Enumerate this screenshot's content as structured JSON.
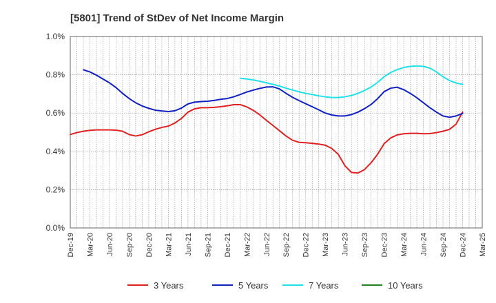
{
  "chart_data": {
    "type": "line",
    "title": "[5801]  Trend of StDev of Net Income Margin",
    "xlabel": "",
    "ylabel": "",
    "x_tick_labels": [
      "Dec-19",
      "Mar-20",
      "Jun-20",
      "Sep-20",
      "Dec-20",
      "Mar-21",
      "Jun-21",
      "Sep-21",
      "Dec-21",
      "Mar-22",
      "Jun-22",
      "Sep-22",
      "Dec-22",
      "Mar-23",
      "Jun-23",
      "Sep-23",
      "Dec-23",
      "Mar-24",
      "Jun-24",
      "Sep-24",
      "Dec-24",
      "Mar-25"
    ],
    "y_tick_labels": [
      "0.0%",
      "0.2%",
      "0.4%",
      "0.6%",
      "0.8%",
      "1.0%"
    ],
    "ylim": [
      0,
      1.0
    ],
    "grid": true,
    "legend_position": "bottom",
    "series": [
      {
        "name": "3 Years",
        "color": "#e02020",
        "points": [
          [
            "Dec-19",
            0.488
          ],
          [
            "Jan-20",
            0.498
          ],
          [
            "Feb-20",
            0.505
          ],
          [
            "Mar-20",
            0.51
          ],
          [
            "Apr-20",
            0.512
          ],
          [
            "May-20",
            0.512
          ],
          [
            "Jun-20",
            0.512
          ],
          [
            "Jul-20",
            0.511
          ],
          [
            "Aug-20",
            0.505
          ],
          [
            "Sep-20",
            0.488
          ],
          [
            "Oct-20",
            0.48
          ],
          [
            "Nov-20",
            0.487
          ],
          [
            "Dec-20",
            0.502
          ],
          [
            "Jan-21",
            0.515
          ],
          [
            "Feb-21",
            0.525
          ],
          [
            "Mar-21",
            0.532
          ],
          [
            "Apr-21",
            0.548
          ],
          [
            "May-21",
            0.572
          ],
          [
            "Jun-21",
            0.605
          ],
          [
            "Jul-21",
            0.622
          ],
          [
            "Aug-21",
            0.628
          ],
          [
            "Sep-21",
            0.628
          ],
          [
            "Oct-21",
            0.63
          ],
          [
            "Nov-21",
            0.633
          ],
          [
            "Dec-21",
            0.638
          ],
          [
            "Jan-22",
            0.644
          ],
          [
            "Feb-22",
            0.644
          ],
          [
            "Mar-22",
            0.632
          ],
          [
            "Apr-22",
            0.614
          ],
          [
            "May-22",
            0.59
          ],
          [
            "Jun-22",
            0.562
          ],
          [
            "Jul-22",
            0.535
          ],
          [
            "Aug-22",
            0.508
          ],
          [
            "Sep-22",
            0.48
          ],
          [
            "Oct-22",
            0.458
          ],
          [
            "Nov-22",
            0.447
          ],
          [
            "Dec-22",
            0.445
          ],
          [
            "Jan-23",
            0.442
          ],
          [
            "Feb-23",
            0.438
          ],
          [
            "Mar-23",
            0.432
          ],
          [
            "Apr-23",
            0.415
          ],
          [
            "May-23",
            0.384
          ],
          [
            "Jun-23",
            0.325
          ],
          [
            "Jul-23",
            0.29
          ],
          [
            "Aug-23",
            0.287
          ],
          [
            "Sep-23",
            0.305
          ],
          [
            "Oct-23",
            0.34
          ],
          [
            "Nov-23",
            0.385
          ],
          [
            "Dec-23",
            0.44
          ],
          [
            "Jan-24",
            0.47
          ],
          [
            "Feb-24",
            0.486
          ],
          [
            "Mar-24",
            0.492
          ],
          [
            "Apr-24",
            0.494
          ],
          [
            "May-24",
            0.494
          ],
          [
            "Jun-24",
            0.492
          ],
          [
            "Jul-24",
            0.493
          ],
          [
            "Aug-24",
            0.498
          ],
          [
            "Sep-24",
            0.505
          ],
          [
            "Oct-24",
            0.515
          ],
          [
            "Nov-24",
            0.542
          ],
          [
            "Dec-24",
            0.605
          ]
        ]
      },
      {
        "name": "5 Years",
        "color": "#1020c0",
        "points": [
          [
            "Feb-20",
            0.826
          ],
          [
            "Mar-20",
            0.815
          ],
          [
            "Apr-20",
            0.798
          ],
          [
            "May-20",
            0.778
          ],
          [
            "Jun-20",
            0.758
          ],
          [
            "Jul-20",
            0.733
          ],
          [
            "Aug-20",
            0.703
          ],
          [
            "Sep-20",
            0.676
          ],
          [
            "Oct-20",
            0.654
          ],
          [
            "Nov-20",
            0.637
          ],
          [
            "Dec-20",
            0.625
          ],
          [
            "Jan-21",
            0.615
          ],
          [
            "Feb-21",
            0.611
          ],
          [
            "Mar-21",
            0.608
          ],
          [
            "Apr-21",
            0.612
          ],
          [
            "May-21",
            0.626
          ],
          [
            "Jun-21",
            0.648
          ],
          [
            "Jul-21",
            0.657
          ],
          [
            "Aug-21",
            0.66
          ],
          [
            "Sep-21",
            0.662
          ],
          [
            "Oct-21",
            0.666
          ],
          [
            "Nov-21",
            0.672
          ],
          [
            "Dec-21",
            0.676
          ],
          [
            "Jan-22",
            0.685
          ],
          [
            "Feb-22",
            0.697
          ],
          [
            "Mar-22",
            0.71
          ],
          [
            "Apr-22",
            0.72
          ],
          [
            "May-22",
            0.729
          ],
          [
            "Jun-22",
            0.736
          ],
          [
            "Jul-22",
            0.737
          ],
          [
            "Aug-22",
            0.726
          ],
          [
            "Sep-22",
            0.703
          ],
          [
            "Oct-22",
            0.682
          ],
          [
            "Nov-22",
            0.665
          ],
          [
            "Dec-22",
            0.649
          ],
          [
            "Jan-23",
            0.633
          ],
          [
            "Feb-23",
            0.617
          ],
          [
            "Mar-23",
            0.6
          ],
          [
            "Apr-23",
            0.59
          ],
          [
            "May-23",
            0.585
          ],
          [
            "Jun-23",
            0.585
          ],
          [
            "Jul-23",
            0.592
          ],
          [
            "Aug-23",
            0.605
          ],
          [
            "Sep-23",
            0.623
          ],
          [
            "Oct-23",
            0.645
          ],
          [
            "Nov-23",
            0.675
          ],
          [
            "Dec-23",
            0.712
          ],
          [
            "Jan-24",
            0.73
          ],
          [
            "Feb-24",
            0.735
          ],
          [
            "Mar-24",
            0.722
          ],
          [
            "Apr-24",
            0.703
          ],
          [
            "May-24",
            0.68
          ],
          [
            "Jun-24",
            0.654
          ],
          [
            "Jul-24",
            0.628
          ],
          [
            "Aug-24",
            0.605
          ],
          [
            "Sep-24",
            0.585
          ],
          [
            "Oct-24",
            0.578
          ],
          [
            "Nov-24",
            0.585
          ],
          [
            "Dec-24",
            0.598
          ]
        ]
      },
      {
        "name": "7 Years",
        "color": "#20e0e8",
        "points": [
          [
            "Feb-22",
            0.782
          ],
          [
            "Mar-22",
            0.778
          ],
          [
            "Apr-22",
            0.773
          ],
          [
            "May-22",
            0.766
          ],
          [
            "Jun-22",
            0.758
          ],
          [
            "Jul-22",
            0.75
          ],
          [
            "Aug-22",
            0.741
          ],
          [
            "Sep-22",
            0.73
          ],
          [
            "Oct-22",
            0.72
          ],
          [
            "Nov-22",
            0.711
          ],
          [
            "Dec-22",
            0.703
          ],
          [
            "Jan-23",
            0.697
          ],
          [
            "Feb-23",
            0.69
          ],
          [
            "Mar-23",
            0.685
          ],
          [
            "Apr-23",
            0.681
          ],
          [
            "May-23",
            0.681
          ],
          [
            "Jun-23",
            0.685
          ],
          [
            "Jul-23",
            0.692
          ],
          [
            "Aug-23",
            0.703
          ],
          [
            "Sep-23",
            0.718
          ],
          [
            "Oct-23",
            0.736
          ],
          [
            "Nov-23",
            0.76
          ],
          [
            "Dec-23",
            0.79
          ],
          [
            "Jan-24",
            0.812
          ],
          [
            "Feb-24",
            0.827
          ],
          [
            "Mar-24",
            0.838
          ],
          [
            "Apr-24",
            0.844
          ],
          [
            "May-24",
            0.846
          ],
          [
            "Jun-24",
            0.844
          ],
          [
            "Jul-24",
            0.835
          ],
          [
            "Aug-24",
            0.815
          ],
          [
            "Sep-24",
            0.79
          ],
          [
            "Oct-24",
            0.77
          ],
          [
            "Nov-24",
            0.757
          ],
          [
            "Dec-24",
            0.75
          ]
        ]
      },
      {
        "name": "10 Years",
        "color": "#208020",
        "points": []
      }
    ]
  }
}
